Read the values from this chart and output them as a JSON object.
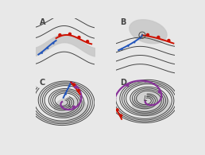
{
  "bg_color": "#e8e8e8",
  "panel_bg": "#ffffff",
  "gray_fill": "#c8c8c8",
  "line_color": "#444444",
  "blue_color": "#2255bb",
  "red_color": "#cc1100",
  "purple_color": "#883399",
  "label_color": "#111111",
  "panels": [
    "A",
    "B",
    "C",
    "D"
  ],
  "front_lw": 1.4,
  "isobar_lw": 0.7
}
